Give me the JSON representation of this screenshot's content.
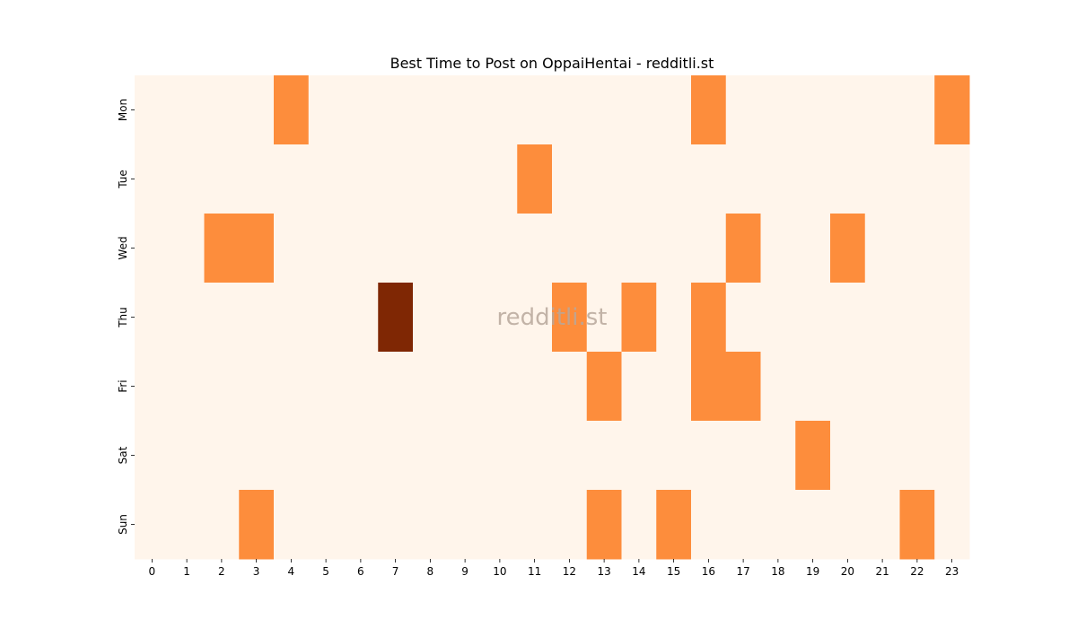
{
  "chart_data": {
    "type": "heatmap",
    "title": "Best Time to Post on OppaiHentai - redditli.st",
    "watermark": "redditli.st",
    "x_categories": [
      "0",
      "1",
      "2",
      "3",
      "4",
      "5",
      "6",
      "7",
      "8",
      "9",
      "10",
      "11",
      "12",
      "13",
      "14",
      "15",
      "16",
      "17",
      "18",
      "19",
      "20",
      "21",
      "22",
      "23"
    ],
    "y_categories": [
      "Mon",
      "Tue",
      "Wed",
      "Thu",
      "Fri",
      "Sat",
      "Sun"
    ],
    "values": [
      [
        0,
        0,
        0,
        0,
        1,
        0,
        0,
        0,
        0,
        0,
        0,
        0,
        0,
        0,
        0,
        0,
        1,
        0,
        0,
        0,
        0,
        0,
        0,
        1
      ],
      [
        0,
        0,
        0,
        0,
        0,
        0,
        0,
        0,
        0,
        0,
        0,
        1,
        0,
        0,
        0,
        0,
        0,
        0,
        0,
        0,
        0,
        0,
        0,
        0
      ],
      [
        0,
        0,
        1,
        1,
        0,
        0,
        0,
        0,
        0,
        0,
        0,
        0,
        0,
        0,
        0,
        0,
        0,
        1,
        0,
        0,
        1,
        0,
        0,
        0
      ],
      [
        0,
        0,
        0,
        0,
        0,
        0,
        0,
        2,
        0,
        0,
        0,
        0,
        1,
        0,
        1,
        0,
        1,
        0,
        0,
        0,
        0,
        0,
        0,
        0
      ],
      [
        0,
        0,
        0,
        0,
        0,
        0,
        0,
        0,
        0,
        0,
        0,
        0,
        0,
        1,
        0,
        0,
        1,
        1,
        0,
        0,
        0,
        0,
        0,
        0
      ],
      [
        0,
        0,
        0,
        0,
        0,
        0,
        0,
        0,
        0,
        0,
        0,
        0,
        0,
        0,
        0,
        0,
        0,
        0,
        0,
        1,
        0,
        0,
        0,
        0
      ],
      [
        0,
        0,
        0,
        1,
        0,
        0,
        0,
        0,
        0,
        0,
        0,
        0,
        0,
        1,
        0,
        1,
        0,
        0,
        0,
        0,
        0,
        0,
        1,
        0
      ]
    ],
    "color_scale": {
      "0": "#fff5eb",
      "1": "#fd8d3c",
      "2": "#7f2704"
    },
    "colorbar": false,
    "grid": false
  }
}
